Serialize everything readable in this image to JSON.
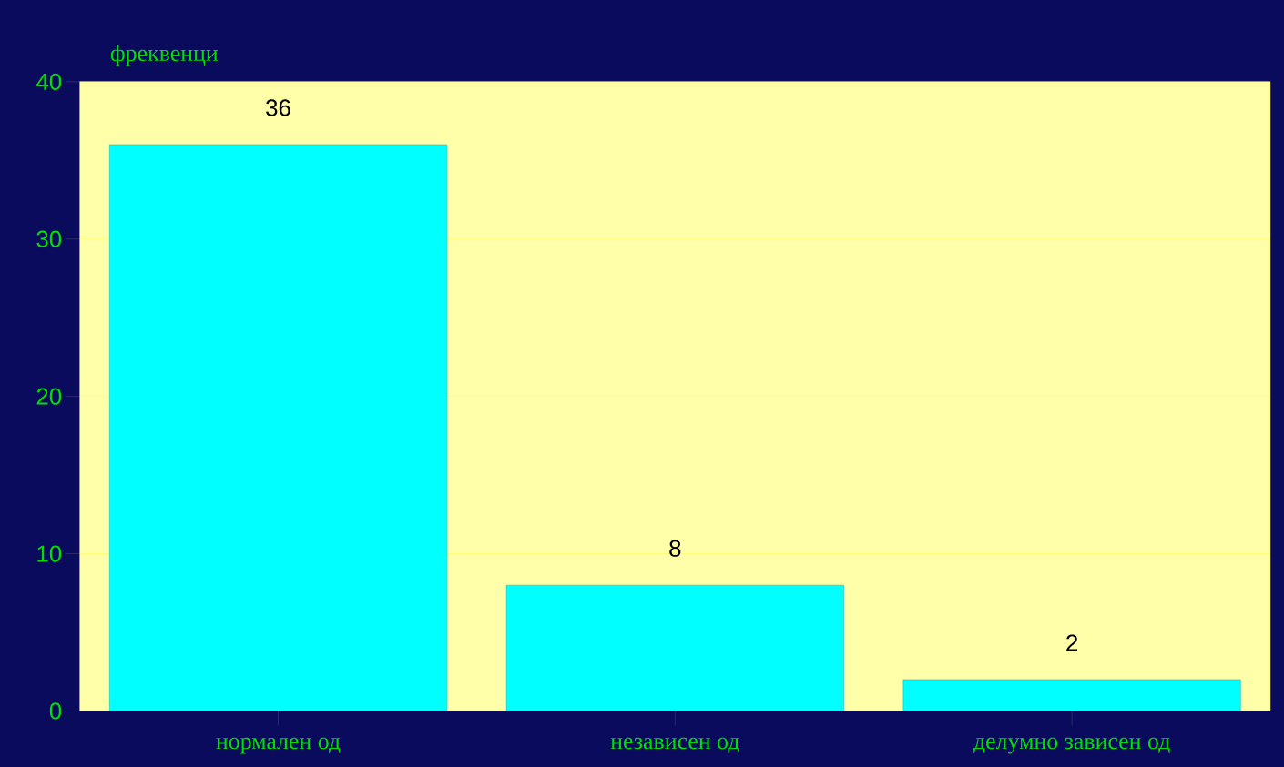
{
  "chart_data": {
    "type": "bar",
    "ylabel": "фреквенци",
    "categories": [
      "нормален од",
      "независен од",
      "делумно зависен од"
    ],
    "values": [
      36,
      8,
      2
    ],
    "color": "#00ffff",
    "ylim": [
      0,
      40
    ],
    "yticks": [
      0,
      10,
      20,
      30,
      40
    ],
    "grid": "y",
    "data_labels": true
  }
}
